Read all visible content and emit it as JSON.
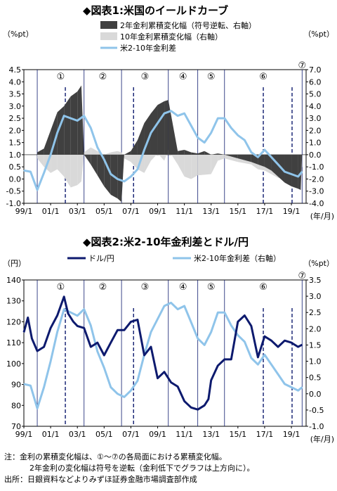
{
  "chart_data": [
    {
      "type": "line",
      "title": "◆図表1:米国のイールドカーブ",
      "y_left_unit": "（%pt）",
      "y_right_unit": "（%pt）",
      "x_unit": "(年/月)",
      "x_ticks": [
        "99/1",
        "01/1",
        "03/1",
        "05/1",
        "07/1",
        "09/1",
        "11/1",
        "13/1",
        "15/1",
        "17/1",
        "19/1"
      ],
      "ylim_left": [
        -1.0,
        4.5
      ],
      "yticks_left": [
        "4.5",
        "4.0",
        "3.5",
        "3.0",
        "2.5",
        "2.0",
        "1.5",
        "1.0",
        "0.5",
        "0.0",
        "-0.5",
        "-1.0"
      ],
      "ylim_right": [
        -4.0,
        7.0
      ],
      "yticks_right": [
        "7.0",
        "6.0",
        "5.0",
        "4.0",
        "3.0",
        "2.0",
        "1.0",
        "0.0",
        "-1.0",
        "-2.0",
        "-3.0",
        "-4.0"
      ],
      "legend": [
        {
          "label": "2年金利累積変化幅（符号逆転、右軸）",
          "color": "#404040"
        },
        {
          "label": "10年金利累積変化幅（右軸）",
          "color": "#d9d9d9"
        },
        {
          "label": "米2-10年金利差",
          "color": "#8fc4ea"
        }
      ],
      "phases": [
        "①",
        "②",
        "③",
        "④",
        "⑤",
        "⑥",
        "⑦"
      ],
      "phase_starts": [
        2000.0,
        2003.5,
        2006.3,
        2009.8,
        2012.0,
        2014.0,
        2019.8
      ],
      "peak_lines": [
        2002.1,
        2007.2,
        2016.9,
        2019.05
      ],
      "series": [
        {
          "name": "米2-10年金利差",
          "color": "#8fc4ea",
          "x": [
            1999.0,
            1999.5,
            2000.0,
            2000.5,
            2001.0,
            2001.5,
            2002.0,
            2002.5,
            2003.0,
            2003.5,
            2004.0,
            2004.5,
            2005.0,
            2005.5,
            2006.0,
            2006.5,
            2007.0,
            2007.5,
            2008.0,
            2008.5,
            2009.0,
            2009.5,
            2010.0,
            2010.5,
            2011.0,
            2011.5,
            2012.0,
            2012.5,
            2013.0,
            2013.5,
            2014.0,
            2014.5,
            2015.0,
            2015.5,
            2016.0,
            2016.5,
            2017.0,
            2017.5,
            2018.0,
            2018.5,
            2019.0,
            2019.5,
            2019.8
          ],
          "y": [
            0.35,
            0.3,
            -0.45,
            0.25,
            1.0,
            1.9,
            2.6,
            2.5,
            2.4,
            2.6,
            2.1,
            1.3,
            0.8,
            0.2,
            0.0,
            -0.1,
            0.1,
            0.4,
            1.2,
            1.9,
            2.3,
            2.7,
            2.8,
            2.6,
            2.7,
            2.2,
            1.7,
            1.5,
            1.9,
            2.5,
            2.5,
            2.1,
            1.8,
            1.6,
            1.1,
            0.9,
            1.2,
            0.9,
            0.6,
            0.3,
            0.2,
            0.1,
            0.3
          ]
        },
        {
          "name": "2年金利累積変化幅（符号逆転、右軸）",
          "color": "#404040",
          "x": [
            2000.0,
            2000.5,
            2001.0,
            2001.5,
            2002.0,
            2002.5,
            2003.0,
            2003.3,
            2003.5,
            2004.0,
            2004.5,
            2005.0,
            2005.5,
            2006.0,
            2006.3,
            2006.5,
            2007.0,
            2007.5,
            2008.0,
            2008.5,
            2009.0,
            2009.5,
            2009.8,
            2010.5,
            2011.0,
            2011.5,
            2012.0,
            2012.5,
            2013.0,
            2013.5,
            2014.0,
            2015.0,
            2016.0,
            2016.5,
            2017.0,
            2017.5,
            2018.0,
            2018.5,
            2019.0,
            2019.5,
            2019.7,
            2019.8
          ],
          "y": [
            0.2,
            0.5,
            2.0,
            3.5,
            4.0,
            4.8,
            5.2,
            5.7,
            0.0,
            -0.8,
            -1.7,
            -2.6,
            -3.3,
            -3.6,
            -3.9,
            0.0,
            0.3,
            1.2,
            2.6,
            3.4,
            4.1,
            4.4,
            4.5,
            0.3,
            0.4,
            0.2,
            0.1,
            0.3,
            0.0,
            0.1,
            0.0,
            -0.3,
            -0.6,
            -0.8,
            -1.0,
            -1.3,
            -1.8,
            -2.3,
            -2.6,
            -2.8,
            -2.9,
            0.0
          ]
        },
        {
          "name": "10年金利累積変化幅（右軸）",
          "color": "#d9d9d9",
          "x": [
            2000.0,
            2000.5,
            2001.0,
            2001.5,
            2002.0,
            2002.5,
            2003.0,
            2003.3,
            2003.5,
            2004.0,
            2004.5,
            2005.0,
            2005.5,
            2006.0,
            2006.3,
            2006.5,
            2007.0,
            2007.5,
            2008.0,
            2008.5,
            2009.0,
            2009.5,
            2009.8,
            2010.5,
            2011.0,
            2011.5,
            2012.0,
            2013.0,
            2013.5,
            2014.0,
            2015.0,
            2016.0,
            2016.5,
            2017.0,
            2017.5,
            2018.0,
            2018.5,
            2019.0,
            2019.5,
            2019.8
          ],
          "y": [
            -0.3,
            -1.0,
            -1.5,
            -1.2,
            -1.8,
            -2.7,
            -2.5,
            -2.2,
            0.2,
            0.6,
            0.3,
            0.0,
            0.2,
            0.3,
            0.2,
            -0.3,
            -0.6,
            -1.2,
            -1.5,
            -0.5,
            0.1,
            -0.5,
            0.4,
            -0.8,
            -1.8,
            -2.0,
            -1.7,
            -1.6,
            -0.5,
            -0.3,
            -0.6,
            -0.8,
            -1.2,
            -1.3,
            -1.6,
            -1.9,
            -2.0,
            -1.8,
            -1.5,
            -1.0
          ]
        }
      ]
    },
    {
      "type": "line",
      "title": "◆図表2:米2-10年金利差とドル/円",
      "y_left_unit": "（円）",
      "y_right_unit": "（%pt）",
      "x_unit": "(年/月)",
      "x_ticks": [
        "99/1",
        "01/1",
        "03/1",
        "05/1",
        "07/1",
        "09/1",
        "11/1",
        "13/1",
        "15/1",
        "17/1",
        "19/1"
      ],
      "ylim_left": [
        70,
        140
      ],
      "yticks_left": [
        "140",
        "130",
        "120",
        "110",
        "100",
        "90",
        "80",
        "70"
      ],
      "ylim_right": [
        -1.0,
        3.5
      ],
      "yticks_right": [
        "3.5",
        "3.0",
        "2.5",
        "2.0",
        "1.5",
        "1.0",
        "0.5",
        "0.0",
        "-0.5",
        "-1.0"
      ],
      "legend": [
        {
          "label": "ドル/円",
          "color": "#0d1a6e"
        },
        {
          "label": "米2-10年金利差（右軸）",
          "color": "#8fc4ea"
        }
      ],
      "phases": [
        "①",
        "②",
        "③",
        "④",
        "⑤",
        "⑥",
        "⑦"
      ],
      "phase_starts": [
        2000.0,
        2003.5,
        2006.3,
        2009.8,
        2012.0,
        2014.0,
        2019.8
      ],
      "peak_lines": [
        2002.1,
        2007.2,
        2016.9,
        2019.05
      ],
      "series": [
        {
          "name": "ドル/円",
          "color": "#0d1a6e",
          "x": [
            1999.0,
            1999.3,
            1999.6,
            2000.0,
            2000.5,
            2001.0,
            2001.5,
            2002.0,
            2002.3,
            2002.7,
            2003.0,
            2003.5,
            2004.0,
            2004.5,
            2005.0,
            2005.5,
            2006.0,
            2006.5,
            2007.0,
            2007.5,
            2008.0,
            2008.5,
            2009.0,
            2009.5,
            2010.0,
            2010.5,
            2011.0,
            2011.5,
            2012.0,
            2012.5,
            2012.8,
            2013.0,
            2013.5,
            2014.0,
            2014.5,
            2015.0,
            2015.5,
            2016.0,
            2016.5,
            2017.0,
            2017.5,
            2018.0,
            2018.5,
            2019.0,
            2019.5,
            2019.8
          ],
          "y": [
            115,
            122,
            112,
            106,
            108,
            117,
            123,
            132,
            124,
            120,
            118,
            117,
            108,
            110,
            104,
            110,
            116,
            116,
            120,
            121,
            104,
            108,
            93,
            96,
            91,
            89,
            82,
            79,
            78,
            80,
            83,
            92,
            99,
            102,
            102,
            120,
            123,
            118,
            103,
            113,
            111,
            108,
            111,
            110,
            108,
            109
          ]
        },
        {
          "name": "米2-10年金利差（右軸）",
          "color": "#8fc4ea",
          "x": [
            1999.0,
            1999.5,
            2000.0,
            2000.5,
            2001.0,
            2001.5,
            2002.0,
            2002.5,
            2003.0,
            2003.5,
            2004.0,
            2004.5,
            2005.0,
            2005.5,
            2006.0,
            2006.5,
            2007.0,
            2007.5,
            2008.0,
            2008.5,
            2009.0,
            2009.5,
            2010.0,
            2010.5,
            2011.0,
            2011.5,
            2012.0,
            2012.5,
            2013.0,
            2013.5,
            2014.0,
            2014.5,
            2015.0,
            2015.5,
            2016.0,
            2016.5,
            2017.0,
            2017.5,
            2018.0,
            2018.5,
            2019.0,
            2019.5,
            2019.8
          ],
          "y": [
            0.3,
            0.25,
            -0.45,
            0.2,
            1.0,
            1.9,
            2.6,
            2.5,
            2.4,
            2.6,
            2.1,
            1.3,
            0.8,
            0.2,
            0.0,
            -0.1,
            0.1,
            0.4,
            1.2,
            1.9,
            2.3,
            2.7,
            2.8,
            2.6,
            2.7,
            2.2,
            1.7,
            1.5,
            1.9,
            2.5,
            2.5,
            2.1,
            1.8,
            1.6,
            1.1,
            0.9,
            1.2,
            0.9,
            0.6,
            0.3,
            0.2,
            0.1,
            0.2
          ]
        }
      ]
    }
  ],
  "notes": {
    "line1": "注：金利の累積変化幅は、①～⑦の各局面における累積変化幅。",
    "line2": "2年金利の変化幅は符号を逆転（金利低下でグラフは上方向に）。",
    "line3": "出所：日銀資料などよりみずほ証券金融市場調査部作成"
  }
}
